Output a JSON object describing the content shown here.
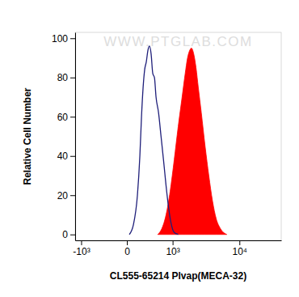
{
  "chart_data": {
    "type": "histogram",
    "x_label": "CL555-65214 Plvap(MECA-32)",
    "y_label": "Relative Cell Number",
    "watermark": "WWW.PTGLAB.COM",
    "log": "x",
    "xlim": [
      -1270,
      37000
    ],
    "xticks": [
      {
        "value": -1000,
        "label": "-10³"
      },
      0,
      {
        "value": 1000,
        "label": "10³"
      },
      {
        "value": 10000,
        "label": "10⁴"
      }
    ],
    "ylim": [
      -3,
      103
    ],
    "yticks": [
      0,
      20,
      40,
      60,
      80,
      100
    ],
    "series": [
      {
        "color": "#1f1f7a",
        "line_style": "solid",
        "x": [
          25,
          72,
          124,
          159,
          184,
          210,
          236,
          265,
          296,
          327,
          359,
          395,
          433,
          471,
          535,
          603,
          676,
          757,
          843,
          934,
          1066,
          1248
        ],
        "values": [
          0,
          5,
          20,
          40,
          60,
          75,
          84,
          88,
          94,
          96,
          92,
          82,
          80,
          70,
          62,
          50,
          38,
          25,
          14,
          6,
          1,
          0
        ]
      },
      {
        "color": "#ff0000",
        "type": "area",
        "x": [
          513,
          626,
          757,
          903,
          1066,
          1248,
          1448,
          1625,
          1771,
          1926,
          2036,
          2211,
          2395,
          2591,
          2877,
          3270,
          3705,
          4193,
          4735,
          5436,
          6668
        ],
        "values": [
          0,
          3,
          10,
          22,
          38,
          55,
          70,
          82,
          90,
          94,
          95,
          92,
          85,
          75,
          62,
          45,
          30,
          17,
          8,
          3,
          0
        ]
      }
    ]
  }
}
